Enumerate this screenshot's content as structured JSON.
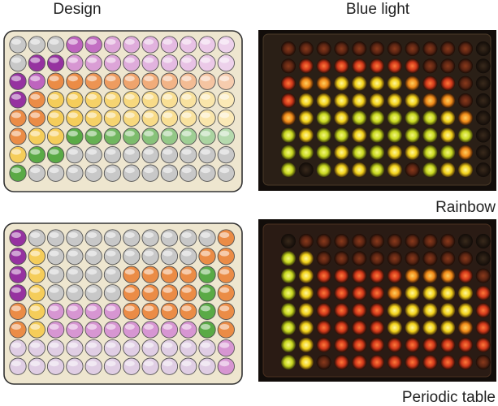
{
  "labels": {
    "design": "Design",
    "blue_light": "Blue light",
    "rainbow": "Rainbow",
    "periodic_table": "Periodic table"
  }
}
